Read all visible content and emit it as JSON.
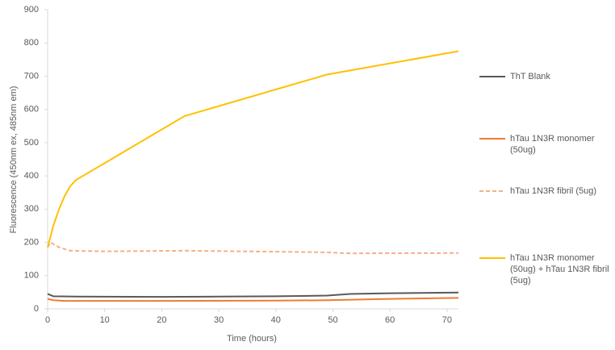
{
  "chart_data": {
    "type": "line",
    "x_label": "Time (hours)",
    "y_label": "Fluorescence (450nm ex, 485nm em)",
    "xlim": [
      0,
      72
    ],
    "xticks": [
      0,
      10,
      20,
      30,
      40,
      50,
      60,
      70
    ],
    "ylim": [
      0,
      900
    ],
    "yticks": [
      0,
      100,
      200,
      300,
      400,
      500,
      600,
      700,
      800,
      900
    ],
    "grid": false,
    "legend": "right",
    "series": [
      {
        "name": "ThT Blank",
        "color": "#595959",
        "dashed": false,
        "x": [
          0,
          1,
          5,
          20,
          30,
          40,
          49,
          53,
          60,
          72
        ],
        "values": [
          45,
          38,
          37,
          36,
          37,
          38,
          40,
          45,
          47,
          49
        ]
      },
      {
        "name": "hTau 1N3R monomer (50ug)",
        "color": "#ED7D31",
        "dashed": false,
        "x": [
          0,
          1,
          3,
          20,
          40,
          49,
          60,
          72
        ],
        "values": [
          30,
          26,
          24,
          24,
          25,
          26,
          30,
          33
        ]
      },
      {
        "name": "hTau 1N3R fibril (5ug)",
        "color": "#F4B183",
        "dashed": true,
        "x": [
          0,
          0.5,
          2,
          4,
          10,
          24,
          40,
          49,
          53,
          72
        ],
        "values": [
          185,
          200,
          185,
          175,
          173,
          175,
          172,
          170,
          167,
          168
        ]
      },
      {
        "name": "hTau 1N3R monomer (50ug) + hTau 1N3R fibril (5ug)",
        "color": "#FFC000",
        "dashed": false,
        "x": [
          0,
          1,
          2,
          3,
          4,
          5,
          24,
          49,
          72
        ],
        "values": [
          185,
          250,
          300,
          340,
          370,
          388,
          580,
          705,
          775
        ]
      }
    ]
  }
}
